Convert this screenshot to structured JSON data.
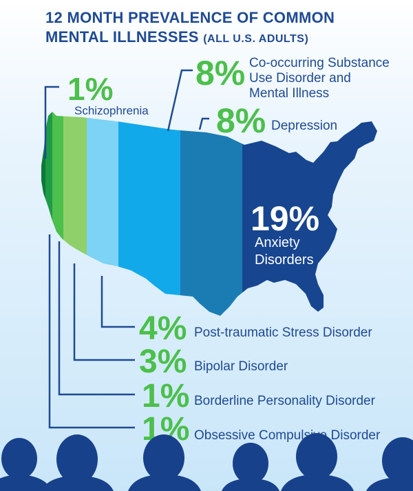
{
  "title": {
    "line1": "12 MONTH PREVALENCE OF COMMON",
    "line2": "MENTAL ILLNESSES",
    "subtitle": "(ALL U.S. ADULTS)"
  },
  "colors": {
    "title": "#1f4a93",
    "percent_green": "#4cbf4c",
    "label_blue": "#1f4a93",
    "leader": "#1f4a93",
    "silhouettes": "#17418a"
  },
  "chart_data": {
    "type": "bar",
    "title": "12 MONTH PREVALENCE OF COMMON MENTAL ILLNESSES (ALL U.S. ADULTS)",
    "unit": "%",
    "categories": [
      "Obsessive Compulsive Disorder",
      "Borderline Personality Disorder",
      "Bipolar Disorder",
      "Post-traumatic Stress Disorder",
      "Schizophrenia",
      "Co-occurring Substance Use Disorder and Mental Illness",
      "Depression",
      "Anxiety Disorders"
    ],
    "values": [
      1,
      1,
      3,
      4,
      1,
      8,
      8,
      19
    ],
    "value_labels": [
      "1%",
      "1%",
      "3%",
      "4%",
      "1%",
      "8%",
      "8%",
      "19%"
    ],
    "band_colors": [
      "#0b7a3a",
      "#1f9a47",
      "#4cbf4c",
      "#8fd06a",
      "#7dd3f5",
      "#12a9ea",
      "#1b7cb3",
      "#17458f"
    ],
    "label_lines": [
      [
        "Obsessive Compulsive Disorder"
      ],
      [
        "Borderline Personality Disorder"
      ],
      [
        "Bipolar Disorder"
      ],
      [
        "Post-traumatic Stress Disorder"
      ],
      [
        "Schizophrenia"
      ],
      [
        "Co-occurring Substance",
        "Use Disorder and",
        "Mental Illness"
      ],
      [
        "Depression"
      ],
      [
        "Anxiety",
        "Disorders"
      ]
    ]
  }
}
